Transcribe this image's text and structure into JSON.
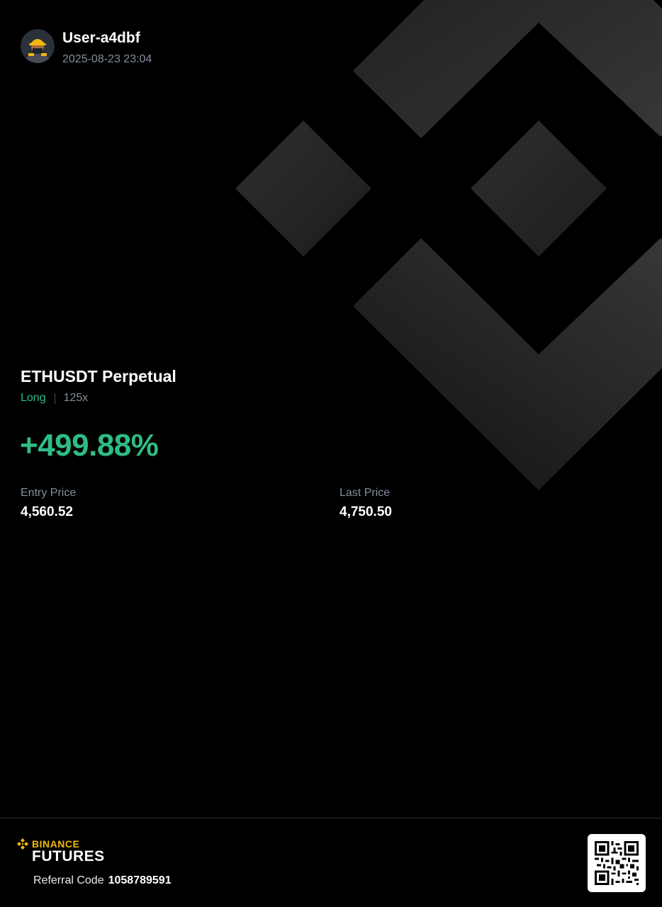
{
  "user": {
    "name": "User-a4dbf",
    "timestamp": "2025-08-23 23:04",
    "avatar_icon": "miner-avatar-icon"
  },
  "position": {
    "symbol": "ETHUSDT Perpetual",
    "side": "Long",
    "leverage": "125x",
    "pnl_percent": "+499.88%"
  },
  "prices": {
    "entry_label": "Entry Price",
    "entry_value": "4,560.52",
    "last_label": "Last Price",
    "last_value": "4,750.50"
  },
  "footer": {
    "brand_top": "BINANCE",
    "brand_bottom": "FUTURES",
    "referral_label": "Referral Code",
    "referral_code": "1058789591",
    "qr_icon": "qr-code-icon"
  },
  "colors": {
    "background": "#000000",
    "profit_green": "#2ebd85",
    "brand_yellow": "#f0b90b",
    "muted_text": "#848e9c"
  }
}
